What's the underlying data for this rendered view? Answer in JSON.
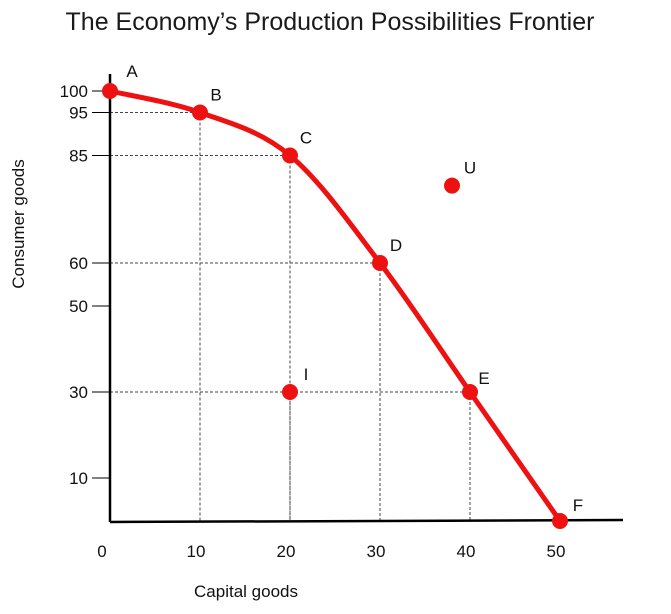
{
  "chart_data": {
    "type": "scatter",
    "title": "The Economy’s Production Possibilities Frontier",
    "xlabel": "Capital goods",
    "ylabel": "Consumer goods",
    "xlim": [
      0,
      58
    ],
    "ylim": [
      0,
      105
    ],
    "x_ticks": [
      0,
      10,
      20,
      30,
      40,
      50
    ],
    "y_ticks": [
      100,
      95,
      85,
      60,
      50,
      30,
      10
    ],
    "grid": false,
    "curve_color": "#ee1111",
    "frontier": [
      {
        "label": "A",
        "x": 0,
        "y": 100
      },
      {
        "label": "B",
        "x": 10,
        "y": 95
      },
      {
        "label": "C",
        "x": 20,
        "y": 85
      },
      {
        "label": "D",
        "x": 30,
        "y": 60
      },
      {
        "label": "E",
        "x": 40,
        "y": 30
      },
      {
        "label": "F",
        "x": 50,
        "y": 0
      }
    ],
    "other_points": [
      {
        "label": "U",
        "x": 38,
        "y": 78
      },
      {
        "label": "I",
        "x": 20,
        "y": 30
      }
    ],
    "guides": [
      {
        "x": 10,
        "y": 95
      },
      {
        "x": 20,
        "y": 85
      },
      {
        "x": 30,
        "y": 60
      },
      {
        "x": 40,
        "y": 30
      },
      {
        "x": 20,
        "y": 30
      }
    ]
  }
}
